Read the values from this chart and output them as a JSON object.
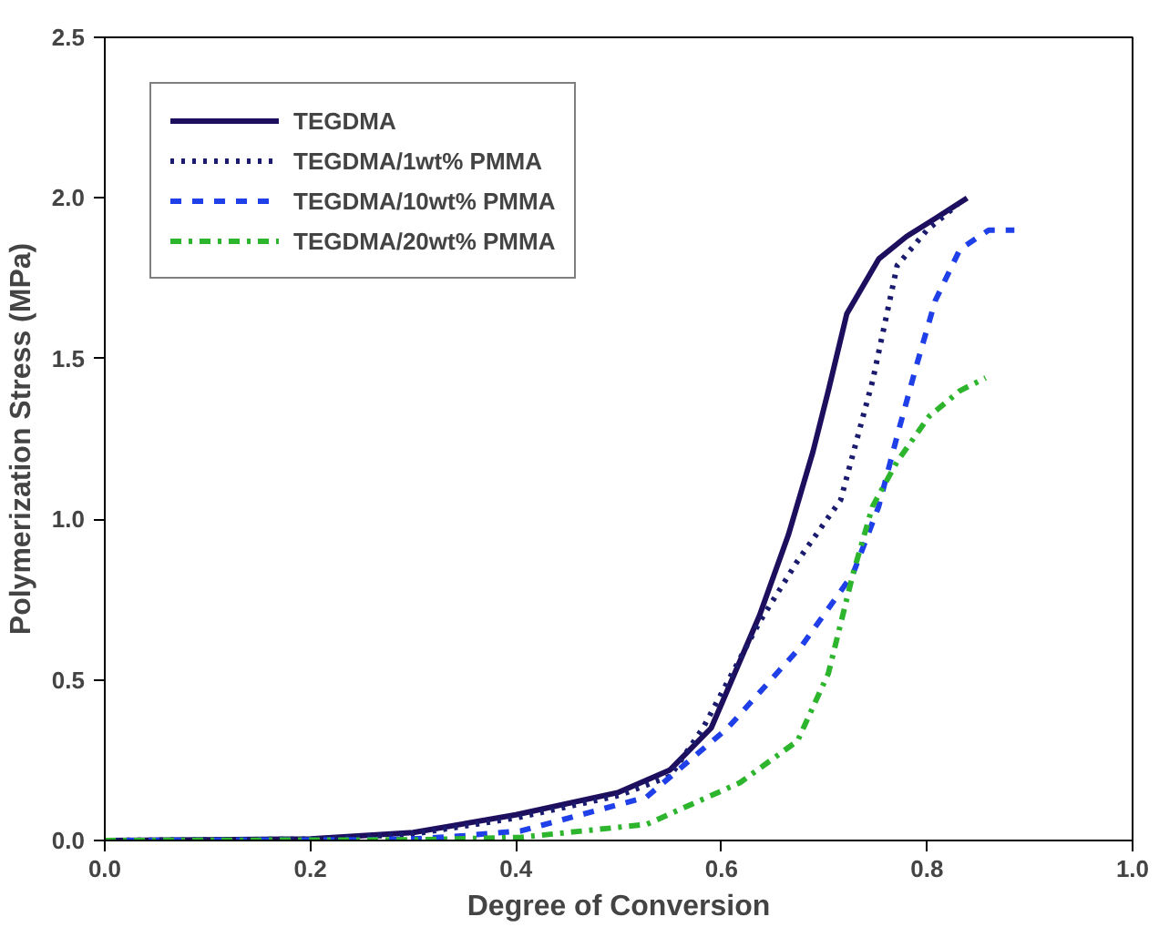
{
  "chart_data": {
    "type": "line",
    "xlabel": "Degree of Conversion",
    "ylabel": "Polymerization Stress (MPa)",
    "xlim": [
      0,
      1.0
    ],
    "ylim": [
      0,
      2.5
    ],
    "xticks": [
      {
        "value": 0,
        "label": "0.0"
      },
      0.2,
      0.4,
      0.6,
      0.8,
      {
        "value": 1.0,
        "label": "1.0"
      }
    ],
    "yticks": [
      {
        "value": 0,
        "label": "0.0"
      },
      0.5,
      {
        "value": 1.0,
        "label": "1.0"
      },
      1.5,
      {
        "value": 2.0,
        "label": "2.0"
      },
      2.5
    ],
    "grid": false,
    "legend": "top left",
    "marker": "none",
    "series": [
      {
        "name": "TEGDMA",
        "color": "#1e0f5e",
        "line_style": "solid",
        "x": [
          0,
          0.2,
          0.3,
          0.4,
          0.5,
          0.55,
          0.59,
          0.637,
          0.665,
          0.689,
          0.704,
          0.722,
          0.753,
          0.78,
          0.81,
          0.839
        ],
        "values": [
          0,
          0.005,
          0.025,
          0.08,
          0.15,
          0.22,
          0.35,
          0.7,
          0.95,
          1.21,
          1.4,
          1.64,
          1.81,
          1.88,
          1.94,
          2.0
        ]
      },
      {
        "name": "TEGDMA/1wt% PMMA",
        "color": "#1a1a6e",
        "line_style": "dotted",
        "x": [
          0,
          0.2,
          0.3,
          0.4,
          0.5,
          0.55,
          0.582,
          0.637,
          0.674,
          0.716,
          0.747,
          0.771,
          0.8,
          0.83
        ],
        "values": [
          0,
          0.004,
          0.02,
          0.07,
          0.14,
          0.2,
          0.35,
          0.68,
          0.87,
          1.06,
          1.43,
          1.79,
          1.9,
          1.98
        ]
      },
      {
        "name": "TEGDMA/10wt% PMMA",
        "color": "#1f3fe8",
        "line_style": "dashed",
        "x": [
          0,
          0.25,
          0.3,
          0.35,
          0.405,
          0.527,
          0.606,
          0.679,
          0.728,
          0.753,
          0.771,
          0.789,
          0.808,
          0.832,
          0.86,
          0.885
        ],
        "values": [
          0,
          0.002,
          0.005,
          0.015,
          0.03,
          0.135,
          0.35,
          0.61,
          0.83,
          1.04,
          1.26,
          1.47,
          1.68,
          1.84,
          1.9,
          1.9
        ]
      },
      {
        "name": "TEGDMA/20wt% PMMA",
        "color": "#2db52d",
        "line_style": "dashdot",
        "x": [
          0,
          0.3,
          0.405,
          0.527,
          0.618,
          0.674,
          0.704,
          0.728,
          0.747,
          0.771,
          0.802,
          0.832,
          0.857
        ],
        "values": [
          0,
          0.002,
          0.01,
          0.05,
          0.18,
          0.31,
          0.52,
          0.83,
          1.04,
          1.18,
          1.32,
          1.4,
          1.44
        ]
      }
    ]
  }
}
